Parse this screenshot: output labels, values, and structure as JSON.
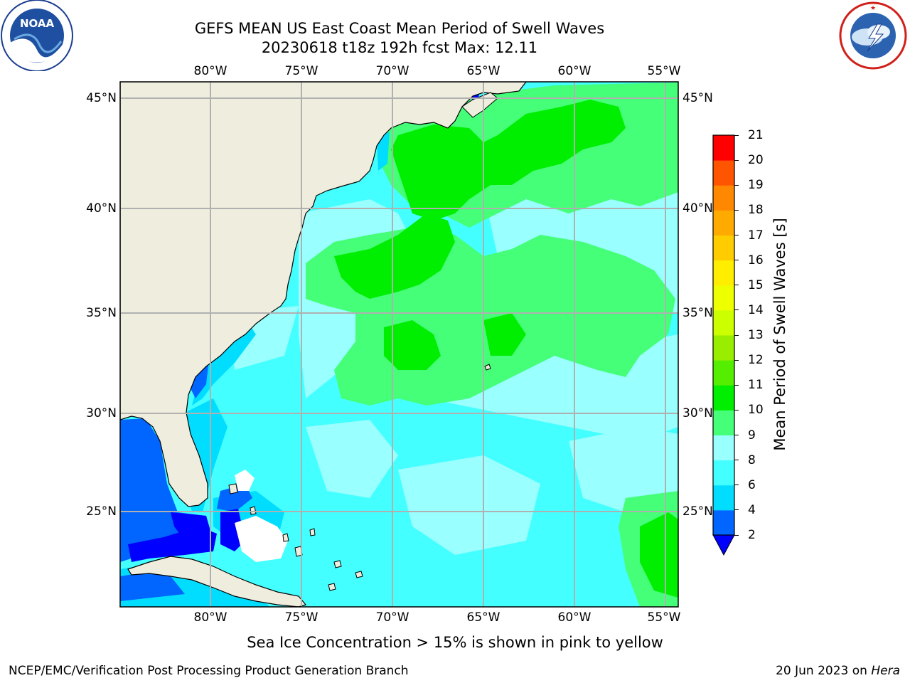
{
  "title": {
    "line1": "GEFS MEAN US East Coast Mean Period of Swell Waves",
    "line2": "20230618 t18z 192h fcst   Max: 12.11"
  },
  "logos": {
    "noaa_text": "NOAA",
    "noaa_ring_text": "NATIONAL OCEANIC AND ATMOSPHERIC ADMINISTRATION · U.S. DEPARTMENT OF COMMERCE",
    "nws_ring_text": "NATIONAL WEATHER SERVICE"
  },
  "map": {
    "lon_labels": [
      "80°W",
      "75°W",
      "70°W",
      "65°W",
      "60°W",
      "55°W"
    ],
    "lat_labels": [
      "45°N",
      "40°N",
      "35°N",
      "30°N",
      "25°N"
    ],
    "colors": {
      "land": "#efedde",
      "ice_free": "#ffffff",
      "grid": "#b0b0b0"
    }
  },
  "colorbar": {
    "label": "Mean Period of Swell Waves [s]",
    "ticks": [
      "2",
      "4",
      "6",
      "8",
      "9",
      "10",
      "11",
      "12",
      "13",
      "14",
      "15",
      "16",
      "17",
      "18",
      "19",
      "20",
      "21"
    ],
    "colors": [
      "#0066ff",
      "#00ddff",
      "#44ffff",
      "#99ffff",
      "#44ff77",
      "#00ee00",
      "#55ee00",
      "#99ee00",
      "#ccff00",
      "#eeff00",
      "#ffee00",
      "#ffcc00",
      "#ffaa00",
      "#ff8800",
      "#ff5500",
      "#ff0000"
    ],
    "under_color": "#0000ff"
  },
  "footer": {
    "note": "Sea Ice Concentration > 15% is shown in pink to yellow",
    "credit": "NCEP/EMC/Verification Post Processing Product Generation Branch",
    "date": "20 Jun 2023 on",
    "machine": "Hera"
  }
}
